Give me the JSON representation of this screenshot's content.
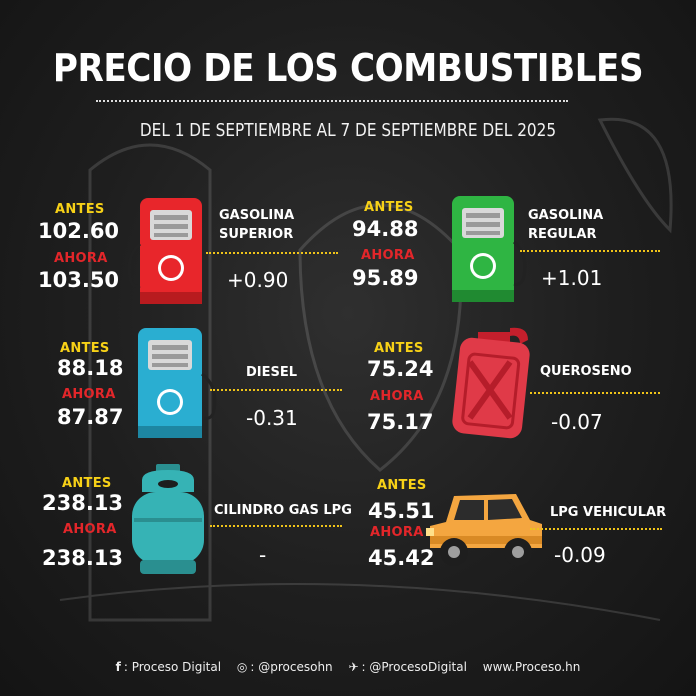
{
  "header": {
    "title": "PRECIO DE LOS COMBUSTIBLES",
    "subtitle": "DEL 1 DE SEPTIEMBRE AL 7 DE SEPTIEMBRE DEL 2025"
  },
  "labels": {
    "antes": "ANTES",
    "ahora": "AHORA"
  },
  "fuels": [
    {
      "name_line1": "GASOLINA",
      "name_line2": "SUPERIOR",
      "antes": "102.60",
      "ahora": "103.50",
      "delta": "+0.90",
      "icon": "red-fuel-pump-icon",
      "color": "#e8262b"
    },
    {
      "name_line1": "GASOLINA",
      "name_line2": "REGULAR",
      "antes": "94.88",
      "ahora": "95.89",
      "delta": "+1.01",
      "icon": "green-fuel-pump-icon",
      "color": "#2fb543"
    },
    {
      "name_line1": "DIESEL",
      "name_line2": "",
      "antes": "88.18",
      "ahora": "87.87",
      "delta": "-0.31",
      "icon": "blue-fuel-pump-icon",
      "color": "#2aaed1"
    },
    {
      "name_line1": "QUEROSENO",
      "name_line2": "",
      "antes": "75.24",
      "ahora": "75.17",
      "delta": "-0.07",
      "icon": "red-jerrycan-icon",
      "color": "#e03a48"
    },
    {
      "name_line1": "CILINDRO GAS LPG",
      "name_line2": "",
      "antes": "238.13",
      "ahora": "238.13",
      "delta": "-",
      "icon": "gas-cylinder-icon",
      "color": "#36b3b5"
    },
    {
      "name_line1": "LPG VEHICULAR",
      "name_line2": "",
      "antes": "45.51",
      "ahora": "45.42",
      "delta": "-0.09",
      "icon": "orange-car-icon",
      "color": "#f4a640"
    }
  ],
  "footer": {
    "facebook": "Proceso Digital",
    "instagram": "@procesohn",
    "twitter": "@ProcesoDigital",
    "website": "www.Proceso.hn"
  }
}
